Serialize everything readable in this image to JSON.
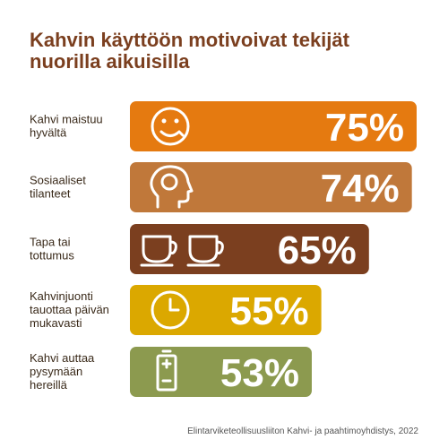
{
  "chart_data": {
    "type": "bar",
    "title": [
      "Kahvin käyttöön motivoivat tekijät",
      "nuorilla aikuisilla"
    ],
    "categories": [
      [
        "Kahvi maistuu",
        "hyvältä"
      ],
      [
        "Sosiaaliset",
        "tilanteet"
      ],
      [
        "Tapa tai",
        "tottumus"
      ],
      [
        "Kahvinjuonti",
        "tauottaa päivän",
        "mukavasti"
      ],
      [
        "Kahvi auttaa",
        "pysymään",
        "hereillä"
      ]
    ],
    "values": [
      75,
      74,
      65,
      55,
      53
    ],
    "value_labels": [
      "75%",
      "74%",
      "65%",
      "55%",
      "53%"
    ],
    "colors": [
      "#e57a10",
      "#c0783a",
      "#7b3f1f",
      "#dba800",
      "#8c9a4f"
    ],
    "source": "Elintarviketeollisuusliiton Kahvi- ja paahtimoyhdistys, 2022"
  }
}
